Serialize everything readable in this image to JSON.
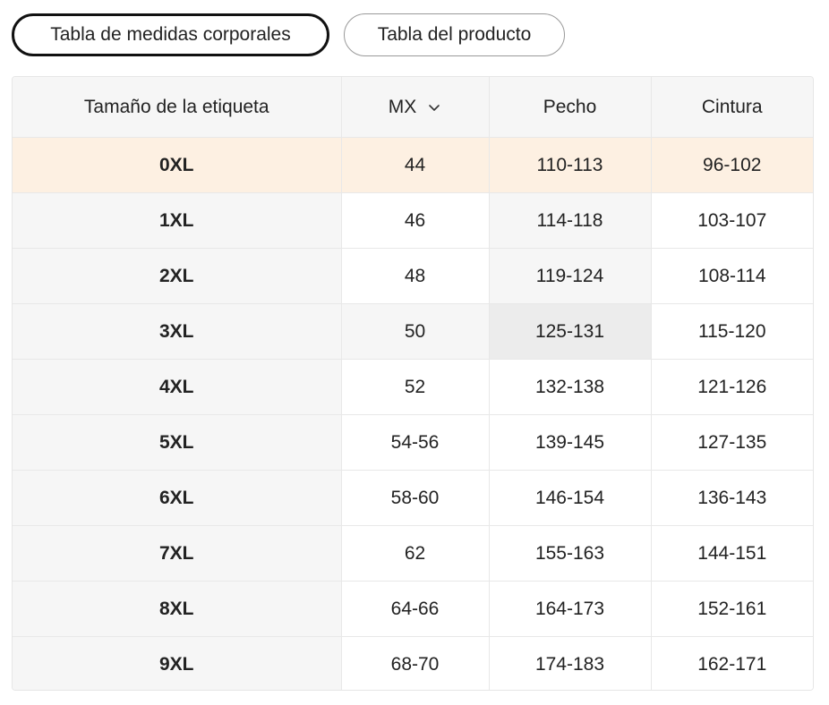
{
  "tabs": [
    {
      "label": "Tabla de medidas corporales",
      "active": true
    },
    {
      "label": "Tabla del producto",
      "active": false
    }
  ],
  "table": {
    "headers": {
      "size": "Tamaño de la etiqueta",
      "region": "MX",
      "chest": "Pecho",
      "waist": "Cintura"
    },
    "rows": [
      {
        "size": "0XL",
        "mx": "44",
        "chest": "110-113",
        "waist": "96-102"
      },
      {
        "size": "1XL",
        "mx": "46",
        "chest": "114-118",
        "waist": "103-107"
      },
      {
        "size": "2XL",
        "mx": "48",
        "chest": "119-124",
        "waist": "108-114"
      },
      {
        "size": "3XL",
        "mx": "50",
        "chest": "125-131",
        "waist": "115-120"
      },
      {
        "size": "4XL",
        "mx": "52",
        "chest": "132-138",
        "waist": "121-126"
      },
      {
        "size": "5XL",
        "mx": "54-56",
        "chest": "139-145",
        "waist": "127-135"
      },
      {
        "size": "6XL",
        "mx": "58-60",
        "chest": "146-154",
        "waist": "136-143"
      },
      {
        "size": "7XL",
        "mx": "62",
        "chest": "155-163",
        "waist": "144-151"
      },
      {
        "size": "8XL",
        "mx": "64-66",
        "chest": "164-173",
        "waist": "152-161"
      },
      {
        "size": "9XL",
        "mx": "68-70",
        "chest": "174-183",
        "waist": "162-171"
      }
    ]
  },
  "icons": {
    "region_dropdown": "chevron-down-icon"
  },
  "colors": {
    "highlight_row": "#fdf0e2",
    "hover_cross": "#ececec",
    "header_bg": "#f6f6f6"
  }
}
